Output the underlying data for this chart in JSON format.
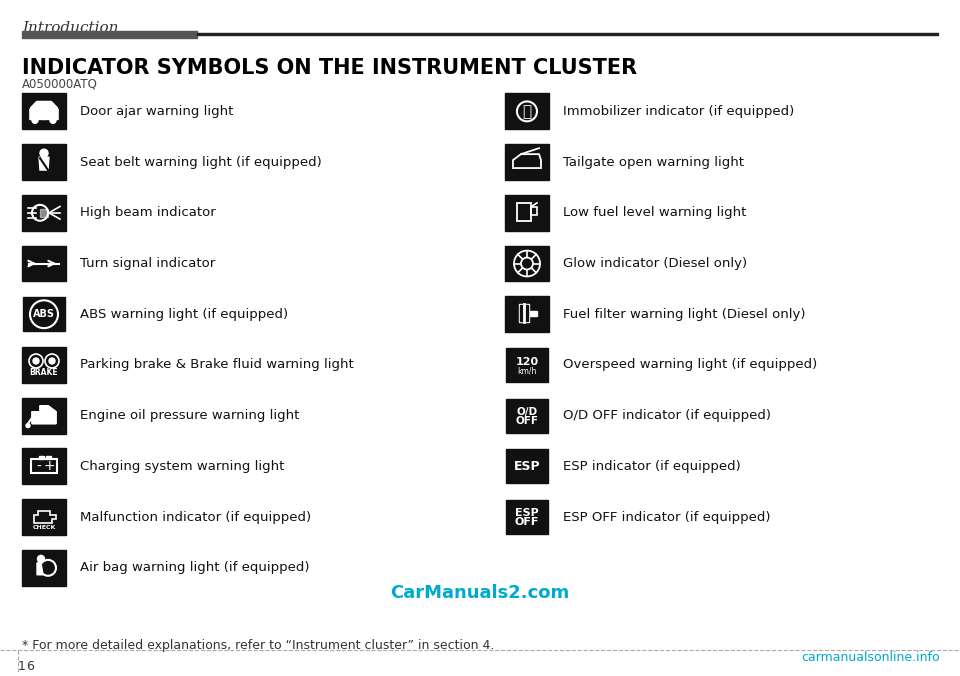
{
  "title": "INDICATOR SYMBOLS ON THE INSTRUMENT CLUSTER",
  "section_label": "Introduction",
  "subtitle": "A050000ATQ",
  "bg_color": "#ffffff",
  "title_color": "#000000",
  "header_bar_left_color": "#555555",
  "header_bar_right_color": "#222222",
  "footer_note": "* For more detailed explanations, refer to “Instrument cluster” in section 4.",
  "page_number": "1 6",
  "watermark": "CarManuals2.com",
  "watermark_color": "#00aacc",
  "carmanualsonline": "carmanualsonline.info",
  "carmanualsonline_color": "#00aacc",
  "left_items": [
    {
      "label": "Door ajar warning light"
    },
    {
      "label": "Seat belt warning light (if equipped)"
    },
    {
      "label": "High beam indicator"
    },
    {
      "label": "Turn signal indicator"
    },
    {
      "label": "ABS warning light (if equipped)"
    },
    {
      "label": "Parking brake & Brake fluid warning light"
    },
    {
      "label": "Engine oil pressure warning light"
    },
    {
      "label": "Charging system warning light"
    },
    {
      "label": "Malfunction indicator (if equipped)"
    },
    {
      "label": "Air bag warning light (if equipped)"
    }
  ],
  "right_items": [
    {
      "label": "Immobilizer indicator (if equipped)"
    },
    {
      "label": "Tailgate open warning light"
    },
    {
      "label": "Low fuel level warning light"
    },
    {
      "label": "Glow indicator (Diesel only)"
    },
    {
      "label": "Fuel filter warning light (Diesel only)"
    },
    {
      "label": "Overspeed warning light (if equipped)"
    },
    {
      "label": "O/D OFF indicator (if equipped)"
    },
    {
      "label": "ESP indicator (if equipped)"
    },
    {
      "label": "ESP OFF indicator (if equipped)"
    }
  ],
  "icon_bg": "#111111",
  "icon_fg": "#ffffff",
  "icon_size": 0.038,
  "text_fontsize": 10.5,
  "label_fontsize": 9.5,
  "title_fontsize": 15,
  "section_fontsize": 11
}
